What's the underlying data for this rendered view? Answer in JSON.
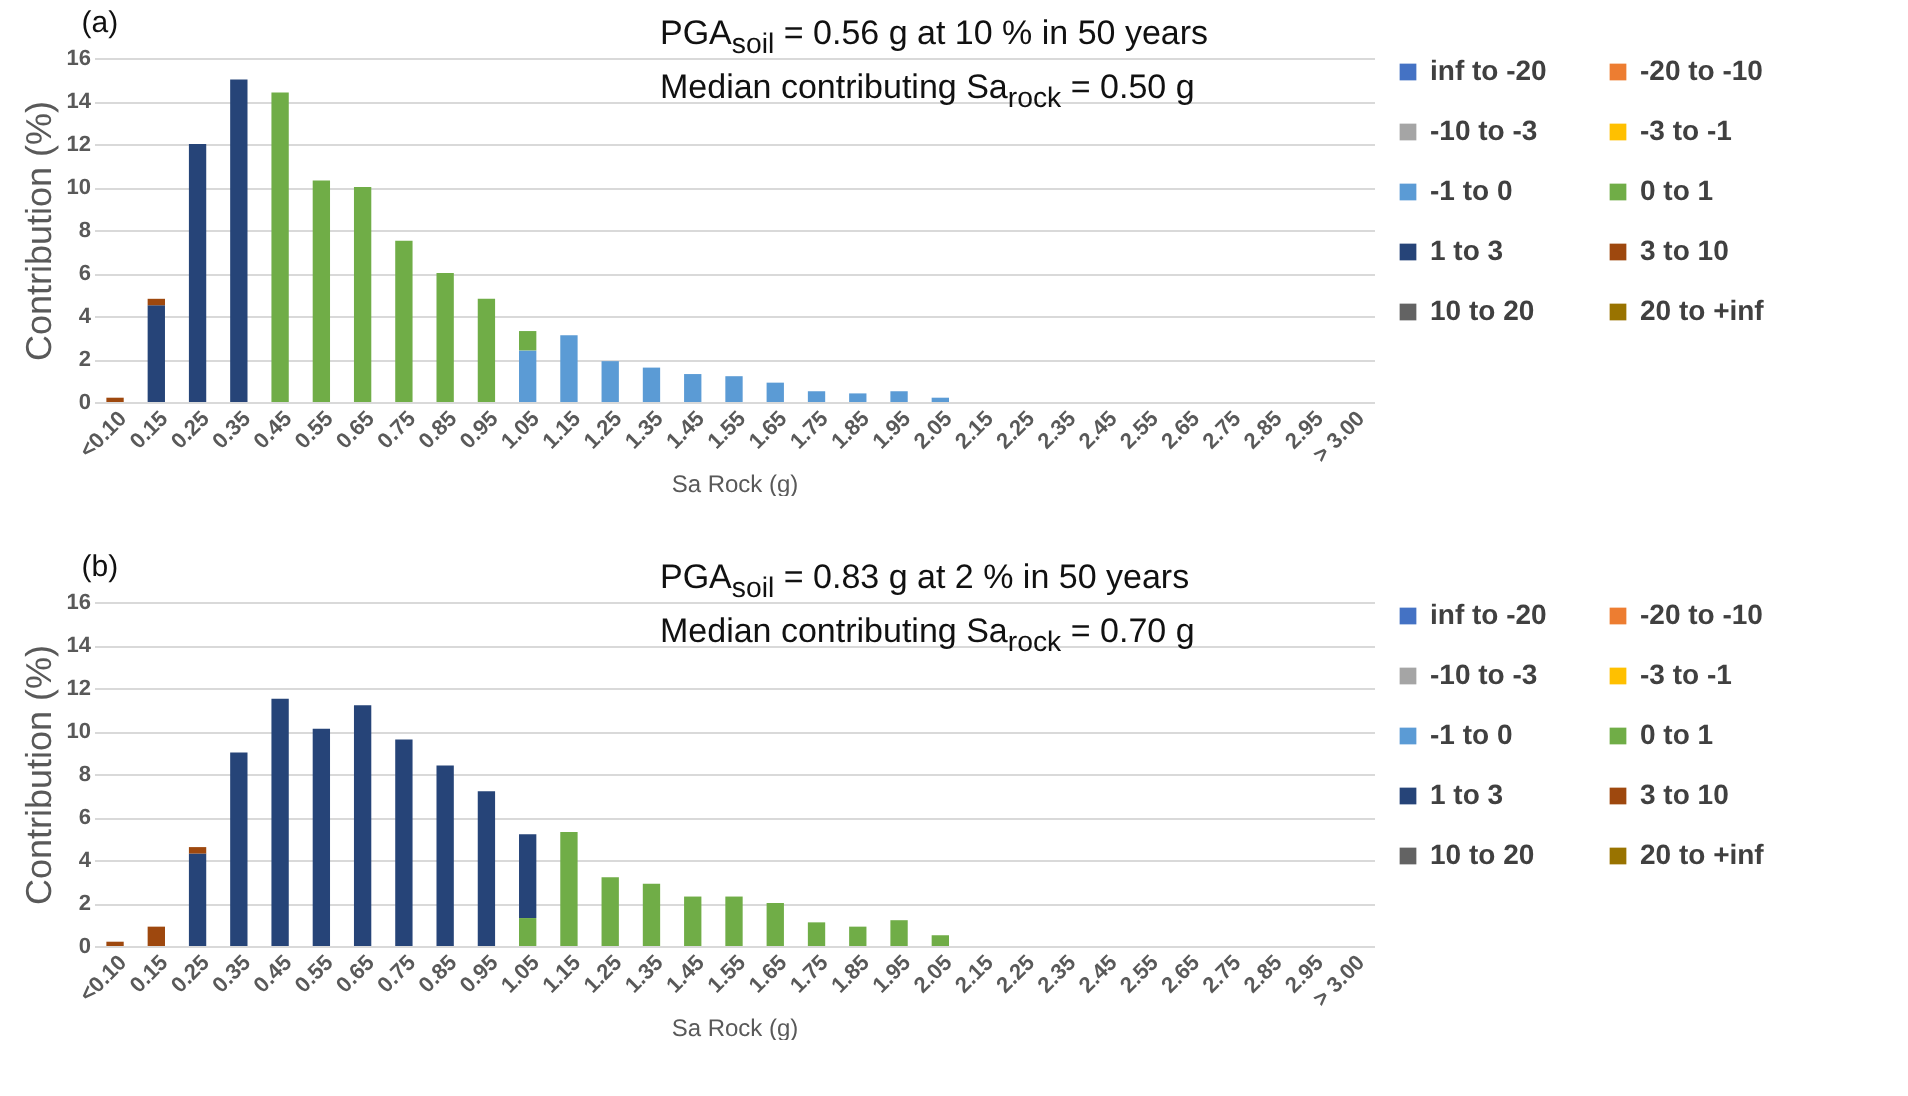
{
  "chart_data": [
    {
      "type": "bar",
      "stacked": true,
      "title": "(a)",
      "xlabel": "Sa Rock (g)",
      "ylabel": "Contribution (%)",
      "annotations": [
        "PGA$_{soil}$ = 0.56 g at 10 % in 50 years",
        "Median contributing Sa$_{rock}$ = 0.50 g"
      ],
      "categories": [
        "<0.10",
        "0.15",
        "0.25",
        "0.35",
        "0.45",
        "0.55",
        "0.65",
        "0.75",
        "0.85",
        "0.95",
        "1.05",
        "1.15",
        "1.25",
        "1.35",
        "1.45",
        "1.55",
        "1.65",
        "1.75",
        "1.85",
        "1.95",
        "2.05",
        "2.15",
        "2.25",
        "2.35",
        "2.45",
        "2.55",
        "2.65",
        "2.75",
        "2.85",
        "2.95",
        "> 3.00"
      ],
      "series": [
        {
          "name": "inf to -20",
          "color": "#4472c4",
          "values": [
            null,
            null,
            null,
            null,
            null,
            null,
            null,
            null,
            null,
            null,
            null,
            null,
            null,
            null,
            null,
            null,
            null,
            null,
            null,
            null,
            null,
            null,
            null,
            null,
            null,
            null,
            null,
            null,
            null,
            null,
            null
          ]
        },
        {
          "name": "-20 to -10",
          "color": "#ed7d31",
          "values": [
            null,
            null,
            null,
            null,
            null,
            null,
            null,
            null,
            null,
            null,
            null,
            null,
            null,
            null,
            null,
            null,
            null,
            null,
            null,
            null,
            null,
            null,
            null,
            null,
            null,
            null,
            null,
            null,
            null,
            null,
            null
          ]
        },
        {
          "name": "-10 to -3",
          "color": "#a5a5a5",
          "values": [
            null,
            null,
            null,
            null,
            null,
            null,
            null,
            null,
            null,
            null,
            null,
            null,
            null,
            null,
            null,
            null,
            null,
            null,
            null,
            null,
            null,
            null,
            null,
            null,
            null,
            null,
            null,
            null,
            null,
            null,
            null
          ]
        },
        {
          "name": "-3 to -1",
          "color": "#ffc000",
          "values": [
            null,
            null,
            null,
            null,
            null,
            null,
            null,
            null,
            null,
            null,
            null,
            null,
            null,
            null,
            null,
            null,
            null,
            null,
            null,
            null,
            null,
            null,
            null,
            null,
            null,
            null,
            null,
            null,
            null,
            null,
            null
          ]
        },
        {
          "name": "-1 to 0",
          "color": "#5b9bd5",
          "values": [
            null,
            null,
            null,
            null,
            null,
            null,
            null,
            null,
            null,
            null,
            2.4,
            3.1,
            1.9,
            1.6,
            1.3,
            1.2,
            0.9,
            0.5,
            0.4,
            0.5,
            0.2,
            null,
            null,
            null,
            null,
            null,
            null,
            null,
            null,
            null,
            null
          ]
        },
        {
          "name": "0 to 1",
          "color": "#70ad47",
          "values": [
            null,
            null,
            null,
            null,
            14.4,
            10.3,
            10,
            7.5,
            6,
            4.8,
            0.9,
            null,
            null,
            null,
            null,
            null,
            null,
            null,
            null,
            null,
            null,
            null,
            null,
            null,
            null,
            null,
            null,
            null,
            null,
            null,
            null
          ]
        },
        {
          "name": "1 to 3",
          "color": "#264478",
          "values": [
            null,
            4.5,
            12,
            15,
            null,
            null,
            null,
            null,
            null,
            null,
            null,
            null,
            null,
            null,
            null,
            null,
            null,
            null,
            null,
            null,
            null,
            null,
            null,
            null,
            null,
            null,
            null,
            null,
            null,
            null,
            null
          ]
        },
        {
          "name": "3 to 10",
          "color": "#9e480e",
          "values": [
            0.2,
            0.3,
            null,
            null,
            null,
            null,
            null,
            null,
            null,
            null,
            null,
            null,
            null,
            null,
            null,
            null,
            null,
            null,
            null,
            null,
            null,
            null,
            null,
            null,
            null,
            null,
            null,
            null,
            null,
            null,
            null
          ]
        },
        {
          "name": "10 to 20",
          "color": "#636363",
          "values": [
            null,
            null,
            null,
            null,
            null,
            null,
            null,
            null,
            null,
            null,
            null,
            null,
            null,
            null,
            null,
            null,
            null,
            null,
            null,
            null,
            null,
            null,
            null,
            null,
            null,
            null,
            null,
            null,
            null,
            null,
            null
          ]
        },
        {
          "name": "20 to +inf",
          "color": "#997300",
          "values": [
            null,
            null,
            null,
            null,
            null,
            null,
            null,
            null,
            null,
            null,
            null,
            null,
            null,
            null,
            null,
            null,
            null,
            null,
            null,
            null,
            null,
            null,
            null,
            null,
            null,
            null,
            null,
            null,
            null,
            null,
            null
          ]
        }
      ],
      "ylim": [
        0,
        16
      ],
      "yticks": [
        0,
        2,
        4,
        6,
        8,
        10,
        12,
        14,
        16
      ],
      "grid": "y",
      "legend": "right"
    },
    {
      "type": "bar",
      "stacked": true,
      "title": "(b)",
      "xlabel": "Sa Rock (g)",
      "ylabel": "Contribution (%)",
      "annotations": [
        "PGA$_{soil}$ = 0.83 g at 2 % in 50 years",
        "Median contributing Sa$_{rock}$ = 0.70 g"
      ],
      "categories": [
        "<0.10",
        "0.15",
        "0.25",
        "0.35",
        "0.45",
        "0.55",
        "0.65",
        "0.75",
        "0.85",
        "0.95",
        "1.05",
        "1.15",
        "1.25",
        "1.35",
        "1.45",
        "1.55",
        "1.65",
        "1.75",
        "1.85",
        "1.95",
        "2.05",
        "2.15",
        "2.25",
        "2.35",
        "2.45",
        "2.55",
        "2.65",
        "2.75",
        "2.85",
        "2.95",
        "> 3.00"
      ],
      "series": [
        {
          "name": "inf to -20",
          "color": "#4472c4",
          "values": [
            null,
            null,
            null,
            null,
            null,
            null,
            null,
            null,
            null,
            null,
            null,
            null,
            null,
            null,
            null,
            null,
            null,
            null,
            null,
            null,
            null,
            null,
            null,
            null,
            null,
            null,
            null,
            null,
            null,
            null,
            null
          ]
        },
        {
          "name": "-20 to -10",
          "color": "#ed7d31",
          "values": [
            null,
            null,
            null,
            null,
            null,
            null,
            null,
            null,
            null,
            null,
            null,
            null,
            null,
            null,
            null,
            null,
            null,
            null,
            null,
            null,
            null,
            null,
            null,
            null,
            null,
            null,
            null,
            null,
            null,
            null,
            null
          ]
        },
        {
          "name": "-10 to -3",
          "color": "#a5a5a5",
          "values": [
            null,
            null,
            null,
            null,
            null,
            null,
            null,
            null,
            null,
            null,
            null,
            null,
            null,
            null,
            null,
            null,
            null,
            null,
            null,
            null,
            null,
            null,
            null,
            null,
            null,
            null,
            null,
            null,
            null,
            null,
            null
          ]
        },
        {
          "name": "-3 to -1",
          "color": "#ffc000",
          "values": [
            null,
            null,
            null,
            null,
            null,
            null,
            null,
            null,
            null,
            null,
            null,
            null,
            null,
            null,
            null,
            null,
            null,
            null,
            null,
            null,
            null,
            null,
            null,
            null,
            null,
            null,
            null,
            null,
            null,
            null,
            null
          ]
        },
        {
          "name": "-1 to 0",
          "color": "#5b9bd5",
          "values": [
            null,
            null,
            null,
            null,
            null,
            null,
            null,
            null,
            null,
            null,
            null,
            null,
            null,
            null,
            null,
            null,
            null,
            null,
            null,
            null,
            null,
            null,
            null,
            null,
            null,
            null,
            null,
            null,
            null,
            null,
            null
          ]
        },
        {
          "name": "0 to 1",
          "color": "#70ad47",
          "values": [
            null,
            null,
            null,
            null,
            null,
            null,
            null,
            null,
            null,
            null,
            1.3,
            5.3,
            3.2,
            2.9,
            2.3,
            2.3,
            2,
            1.1,
            0.9,
            1.2,
            0.5,
            null,
            null,
            null,
            null,
            null,
            null,
            null,
            null,
            null,
            null
          ]
        },
        {
          "name": "1 to 3",
          "color": "#264478",
          "values": [
            null,
            null,
            4.3,
            9,
            11.5,
            10.1,
            11.2,
            9.6,
            8.4,
            7.2,
            3.9,
            null,
            null,
            null,
            null,
            null,
            null,
            null,
            null,
            null,
            null,
            null,
            null,
            null,
            null,
            null,
            null,
            null,
            null,
            null,
            null
          ]
        },
        {
          "name": "3 to 10",
          "color": "#9e480e",
          "values": [
            0.2,
            0.9,
            0.3,
            null,
            null,
            null,
            null,
            null,
            null,
            null,
            null,
            null,
            null,
            null,
            null,
            null,
            null,
            null,
            null,
            null,
            null,
            null,
            null,
            null,
            null,
            null,
            null,
            null,
            null,
            null,
            null
          ]
        },
        {
          "name": "10 to 20",
          "color": "#636363",
          "values": [
            null,
            null,
            null,
            null,
            null,
            null,
            null,
            null,
            null,
            null,
            null,
            null,
            null,
            null,
            null,
            null,
            null,
            null,
            null,
            null,
            null,
            null,
            null,
            null,
            null,
            null,
            null,
            null,
            null,
            null,
            null
          ]
        },
        {
          "name": "20 to +inf",
          "color": "#997300",
          "values": [
            null,
            null,
            null,
            null,
            null,
            null,
            null,
            null,
            null,
            null,
            null,
            null,
            null,
            null,
            null,
            null,
            null,
            null,
            null,
            null,
            null,
            null,
            null,
            null,
            null,
            null,
            null,
            null,
            null,
            null,
            null
          ]
        }
      ],
      "ylim": [
        0,
        16
      ],
      "yticks": [
        0,
        2,
        4,
        6,
        8,
        10,
        12,
        14,
        16
      ],
      "grid": "y",
      "legend": "right"
    }
  ]
}
